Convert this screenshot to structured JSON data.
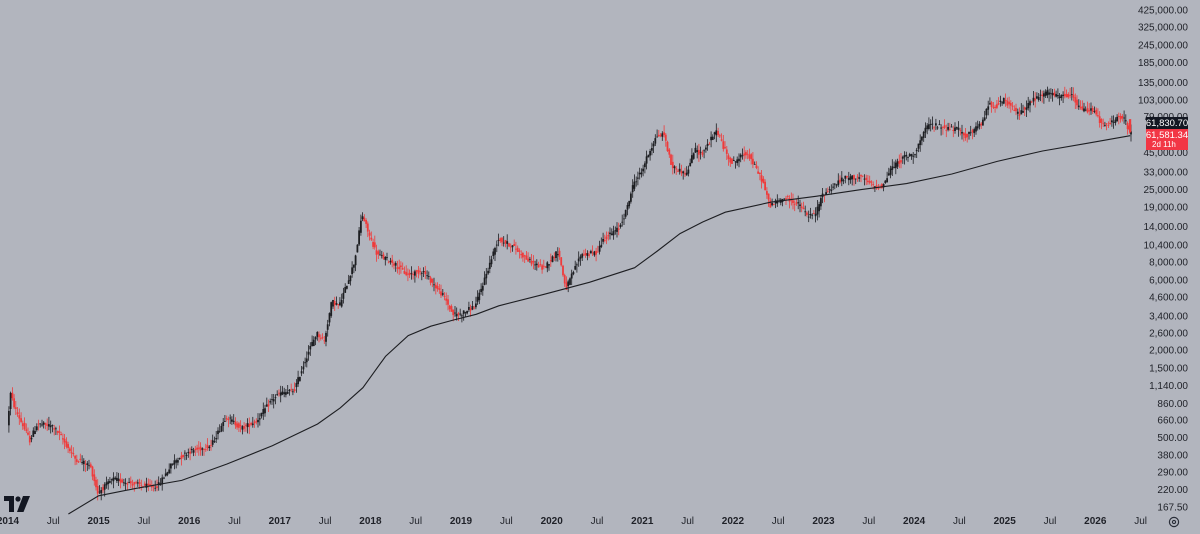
{
  "chart_data": {
    "type": "candlestick",
    "title": "",
    "xlabel": "",
    "ylabel": "",
    "y_scale": "log",
    "ylim": [
      145,
      480000
    ],
    "xlim": [
      "2014-01",
      "2026-08"
    ],
    "grid": false,
    "legend": "none",
    "y_ticks": [
      "425,000.00",
      "325,000.00",
      "245,000.00",
      "185,000.00",
      "135,000.00",
      "103,000.00",
      "79,000.00",
      "45,000.00",
      "33,000.00",
      "25,000.00",
      "19,000.00",
      "14,000.00",
      "10,400.00",
      "8,000.00",
      "6,000.00",
      "4,600.00",
      "3,400.00",
      "2,600.00",
      "2,000.00",
      "1,500.00",
      "1,140.00",
      "860.00",
      "660.00",
      "500.00",
      "380.00",
      "290.00",
      "220.00",
      "167.50"
    ],
    "x_ticks": [
      {
        "label": "2014",
        "at": "2014-01",
        "year": true
      },
      {
        "label": "Jul",
        "at": "2014-07",
        "year": false
      },
      {
        "label": "2015",
        "at": "2015-01",
        "year": true
      },
      {
        "label": "Jul",
        "at": "2015-07",
        "year": false
      },
      {
        "label": "2016",
        "at": "2016-01",
        "year": true
      },
      {
        "label": "Jul",
        "at": "2016-07",
        "year": false
      },
      {
        "label": "2017",
        "at": "2017-01",
        "year": true
      },
      {
        "label": "Jul",
        "at": "2017-07",
        "year": false
      },
      {
        "label": "2018",
        "at": "2018-01",
        "year": true
      },
      {
        "label": "Jul",
        "at": "2018-07",
        "year": false
      },
      {
        "label": "2019",
        "at": "2019-01",
        "year": true
      },
      {
        "label": "Jul",
        "at": "2019-07",
        "year": false
      },
      {
        "label": "2020",
        "at": "2020-01",
        "year": true
      },
      {
        "label": "Jul",
        "at": "2020-07",
        "year": false
      },
      {
        "label": "2021",
        "at": "2021-01",
        "year": true
      },
      {
        "label": "Jul",
        "at": "2021-07",
        "year": false
      },
      {
        "label": "2022",
        "at": "2022-01",
        "year": true
      },
      {
        "label": "Jul",
        "at": "2022-07",
        "year": false
      },
      {
        "label": "2023",
        "at": "2023-01",
        "year": true
      },
      {
        "label": "Jul",
        "at": "2023-07",
        "year": false
      },
      {
        "label": "2024",
        "at": "2024-01",
        "year": true
      },
      {
        "label": "Jul",
        "at": "2024-07",
        "year": false
      },
      {
        "label": "2025",
        "at": "2025-01",
        "year": true
      },
      {
        "label": "Jul",
        "at": "2025-07",
        "year": false
      },
      {
        "label": "2026",
        "at": "2026-01",
        "year": true
      },
      {
        "label": "Jul",
        "at": "2026-07",
        "year": false
      }
    ],
    "price_path": [
      [
        "2014-01",
        600
      ],
      [
        "2014-01-15",
        1000
      ],
      [
        "2014-02",
        800
      ],
      [
        "2014-04",
        480
      ],
      [
        "2014-05",
        620
      ],
      [
        "2014-07",
        600
      ],
      [
        "2014-08",
        520
      ],
      [
        "2014-10",
        360
      ],
      [
        "2014-12",
        320
      ],
      [
        "2015-01",
        210
      ],
      [
        "2015-03",
        260
      ],
      [
        "2015-06",
        240
      ],
      [
        "2015-08",
        230
      ],
      [
        "2015-09",
        235
      ],
      [
        "2015-11",
        340
      ],
      [
        "2016-01",
        400
      ],
      [
        "2016-04",
        440
      ],
      [
        "2016-06",
        700
      ],
      [
        "2016-08",
        580
      ],
      [
        "2016-10",
        650
      ],
      [
        "2016-12",
        900
      ],
      [
        "2017-01",
        1000
      ],
      [
        "2017-03",
        1050
      ],
      [
        "2017-05",
        2000
      ],
      [
        "2017-06",
        2600
      ],
      [
        "2017-07",
        2300
      ],
      [
        "2017-08",
        4300
      ],
      [
        "2017-09",
        4000
      ],
      [
        "2017-11",
        8000
      ],
      [
        "2017-12",
        17000
      ],
      [
        "2018-01",
        12000
      ],
      [
        "2018-02",
        9000
      ],
      [
        "2018-04",
        8000
      ],
      [
        "2018-06",
        6500
      ],
      [
        "2018-08",
        7000
      ],
      [
        "2018-11",
        4500
      ],
      [
        "2018-12",
        3500
      ],
      [
        "2019-01",
        3500
      ],
      [
        "2019-03",
        4000
      ],
      [
        "2019-05",
        8000
      ],
      [
        "2019-06",
        11500
      ],
      [
        "2019-08",
        10200
      ],
      [
        "2019-10",
        8200
      ],
      [
        "2019-12",
        7200
      ],
      [
        "2020-02",
        9500
      ],
      [
        "2020-03",
        5200
      ],
      [
        "2020-05",
        9000
      ],
      [
        "2020-07",
        9200
      ],
      [
        "2020-08",
        11500
      ],
      [
        "2020-10",
        13500
      ],
      [
        "2020-11",
        18000
      ],
      [
        "2020-12",
        28000
      ],
      [
        "2021-01",
        33000
      ],
      [
        "2021-02",
        45000
      ],
      [
        "2021-03",
        58000
      ],
      [
        "2021-04",
        60000
      ],
      [
        "2021-05",
        36000
      ],
      [
        "2021-07",
        32000
      ],
      [
        "2021-08",
        47000
      ],
      [
        "2021-09",
        44000
      ],
      [
        "2021-11",
        64000
      ],
      [
        "2021-12",
        47000
      ],
      [
        "2022-01",
        38000
      ],
      [
        "2022-03",
        45000
      ],
      [
        "2022-05",
        29000
      ],
      [
        "2022-06",
        19500
      ],
      [
        "2022-08",
        22000
      ],
      [
        "2022-10",
        19500
      ],
      [
        "2022-11",
        16500
      ],
      [
        "2022-12",
        16800
      ],
      [
        "2023-01",
        23000
      ],
      [
        "2023-03",
        28000
      ],
      [
        "2023-04",
        30000
      ],
      [
        "2023-06",
        30500
      ],
      [
        "2023-08",
        26000
      ],
      [
        "2023-09",
        26500
      ],
      [
        "2023-10",
        34500
      ],
      [
        "2023-12",
        42500
      ],
      [
        "2024-01",
        43000
      ],
      [
        "2024-03",
        70000
      ],
      [
        "2024-05",
        67000
      ],
      [
        "2024-07",
        64000
      ],
      [
        "2024-08",
        58000
      ],
      [
        "2024-10",
        70000
      ],
      [
        "2024-11",
        96000
      ],
      [
        "2024-12",
        93500
      ],
      [
        "2025-01",
        102000
      ],
      [
        "2025-03",
        82000
      ],
      [
        "2025-04",
        94000
      ],
      [
        "2025-05",
        104000
      ],
      [
        "2025-07",
        117000
      ],
      [
        "2025-08",
        108000
      ],
      [
        "2025-10",
        110000
      ],
      [
        "2025-11",
        90000
      ],
      [
        "2025-12",
        87000
      ],
      [
        "2026-01",
        89000
      ],
      [
        "2026-02",
        68000
      ],
      [
        "2026-03",
        70000
      ],
      [
        "2026-04",
        78000
      ],
      [
        "2026-05",
        76000
      ],
      [
        "2026-05-20",
        61581
      ]
    ],
    "moving_average_path": [
      [
        "2014-09",
        150
      ],
      [
        "2015-01",
        200
      ],
      [
        "2015-06",
        225
      ],
      [
        "2015-12",
        255
      ],
      [
        "2016-06",
        330
      ],
      [
        "2016-12",
        440
      ],
      [
        "2017-06",
        620
      ],
      [
        "2017-09",
        800
      ],
      [
        "2017-12",
        1100
      ],
      [
        "2018-03",
        1800
      ],
      [
        "2018-06",
        2500
      ],
      [
        "2018-09",
        2900
      ],
      [
        "2018-12",
        3200
      ],
      [
        "2019-03",
        3500
      ],
      [
        "2019-06",
        4000
      ],
      [
        "2019-12",
        4800
      ],
      [
        "2020-06",
        5800
      ],
      [
        "2020-12",
        7300
      ],
      [
        "2021-03",
        9500
      ],
      [
        "2021-06",
        12500
      ],
      [
        "2021-09",
        15000
      ],
      [
        "2021-12",
        17500
      ],
      [
        "2022-06",
        20500
      ],
      [
        "2022-12",
        22500
      ],
      [
        "2023-06",
        25000
      ],
      [
        "2023-12",
        27500
      ],
      [
        "2024-06",
        32000
      ],
      [
        "2024-12",
        39000
      ],
      [
        "2025-06",
        46000
      ],
      [
        "2025-12",
        52000
      ],
      [
        "2026-05-20",
        58500
      ]
    ],
    "price_labels": {
      "current": "61,830.70",
      "last": "61,581.34",
      "countdown": "2d 11h"
    },
    "colors": {
      "background": "#b2b5be",
      "candle_up": "#1d1e22",
      "candle_down": "#ef3b3b",
      "moving_average": "#1d1e22",
      "label_current_bg": "#131722",
      "label_last_bg": "#f23645",
      "label_text": "#ffffff",
      "axis_text": "#1f2128"
    }
  },
  "ui": {
    "logo_icon": "tradingview-logo-icon",
    "settings_icon": "gear-icon"
  }
}
